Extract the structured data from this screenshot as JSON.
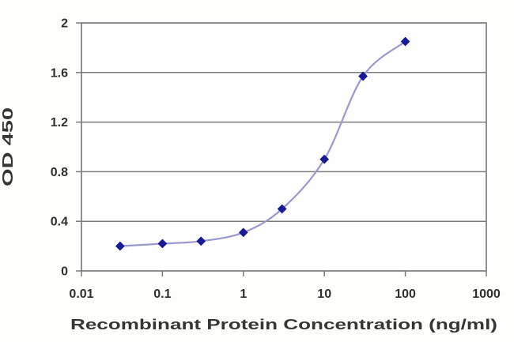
{
  "chart_data": {
    "type": "line",
    "x": [
      0.03,
      0.1,
      0.3,
      1,
      3,
      10,
      30,
      100
    ],
    "y": [
      0.2,
      0.22,
      0.24,
      0.31,
      0.5,
      0.9,
      1.57,
      1.85
    ],
    "title": "",
    "xlabel": "Recombinant Protein Concentration (ng/ml)",
    "ylabel": "OD 450",
    "x_scale": "log",
    "xlim": [
      0.01,
      1000
    ],
    "ylim": [
      0,
      2
    ],
    "x_tick_values": [
      0.01,
      0.1,
      1,
      10,
      100,
      1000
    ],
    "x_tick_labels": [
      "0.01",
      "0.1",
      "1",
      "10",
      "100",
      "1000"
    ],
    "y_tick_values": [
      0,
      0.4,
      0.8,
      1.2,
      1.6,
      2
    ],
    "y_tick_labels": [
      "0",
      "0.4",
      "0.8",
      "1.2",
      "1.6",
      "2"
    ],
    "grid": "horizontal",
    "legend": "none",
    "line_style": "smooth",
    "marker": "diamond",
    "style": {
      "line_color": "#9999cf",
      "marker_color": "#1a1a94",
      "grid_color": "#7c7c7c",
      "border_color": "#7c7c7c",
      "text_color": "#303030",
      "plot_background": "#fefefe"
    }
  }
}
